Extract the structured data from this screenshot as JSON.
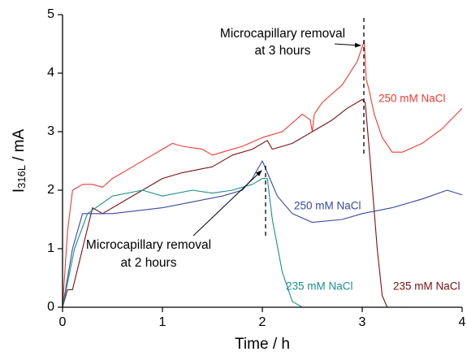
{
  "chart_data": {
    "type": "line",
    "xlabel": "Time / h",
    "ylabel": {
      "main": "I",
      "sub": "316L",
      "unit": "/ mA"
    },
    "xlim": [
      0,
      4
    ],
    "xticks": [
      0,
      1,
      2,
      3,
      4
    ],
    "ylim": [
      0,
      5
    ],
    "yticks": [
      0,
      1,
      2,
      3,
      4,
      5
    ],
    "series": [
      {
        "name": "250 mM NaCl",
        "color": "#f03a32",
        "x": [
          0,
          0.05,
          0.1,
          0.2,
          0.3,
          0.4,
          0.5,
          0.7,
          0.9,
          1.0,
          1.1,
          1.2,
          1.4,
          1.5,
          1.6,
          1.8,
          2.0,
          2.2,
          2.4,
          2.48,
          2.5,
          2.52,
          2.6,
          2.8,
          2.95,
          3.02,
          3.04,
          3.07,
          3.12,
          3.2,
          3.3,
          3.4,
          3.6,
          3.8,
          4.0
        ],
        "values": [
          0,
          1.3,
          2.0,
          2.1,
          2.1,
          2.05,
          2.2,
          2.4,
          2.6,
          2.7,
          2.8,
          2.75,
          2.7,
          2.6,
          2.65,
          2.75,
          2.9,
          3.0,
          3.3,
          3.2,
          3.0,
          3.3,
          3.5,
          3.8,
          4.2,
          4.55,
          3.9,
          3.7,
          3.3,
          2.9,
          2.65,
          2.65,
          2.8,
          3.05,
          3.4
        ]
      },
      {
        "name": "235 mM NaCl",
        "color": "#7a1010",
        "x": [
          0,
          0.05,
          0.1,
          0.2,
          0.3,
          0.4,
          0.6,
          0.8,
          1.0,
          1.2,
          1.5,
          1.7,
          1.9,
          2.05,
          2.1,
          2.3,
          2.5,
          2.7,
          2.85,
          3.0,
          3.03,
          3.08,
          3.15,
          3.2,
          3.25,
          3.5
        ],
        "values": [
          0,
          0.3,
          0.3,
          1.0,
          1.7,
          1.6,
          1.8,
          2.0,
          2.2,
          2.3,
          2.4,
          2.6,
          2.7,
          2.85,
          2.7,
          2.8,
          3.0,
          3.2,
          3.4,
          3.55,
          3.5,
          2.5,
          1.0,
          0.2,
          0,
          0
        ]
      },
      {
        "name": "250 mM NaCl",
        "color": "#3848a0",
        "x": [
          0,
          0.1,
          0.2,
          0.5,
          1.0,
          1.3,
          1.6,
          1.8,
          1.9,
          2.0,
          2.05,
          2.15,
          2.3,
          2.5,
          2.8,
          3.0,
          3.3,
          3.6,
          3.85,
          4.0
        ],
        "values": [
          0,
          1.0,
          1.6,
          1.6,
          1.7,
          1.8,
          1.9,
          2.0,
          2.2,
          2.5,
          2.3,
          1.9,
          1.6,
          1.45,
          1.5,
          1.6,
          1.7,
          1.85,
          2.0,
          1.92
        ]
      },
      {
        "name": "235 mM NaCl",
        "color": "#1a9090",
        "x": [
          0,
          0.12,
          0.25,
          0.5,
          0.8,
          1.0,
          1.3,
          1.5,
          1.7,
          1.9,
          2.0,
          2.05,
          2.1,
          2.2,
          2.3,
          2.4
        ],
        "values": [
          0,
          1.0,
          1.6,
          1.9,
          2.0,
          1.9,
          2.0,
          1.95,
          2.0,
          2.1,
          2.2,
          2.2,
          1.5,
          0.6,
          0.1,
          0
        ]
      }
    ],
    "annotations": [
      {
        "lines": [
          "Microcapillary removal",
          "at 3 hours"
        ]
      },
      {
        "lines": [
          "Microcapillary removal",
          "at 2 hours"
        ]
      }
    ]
  }
}
